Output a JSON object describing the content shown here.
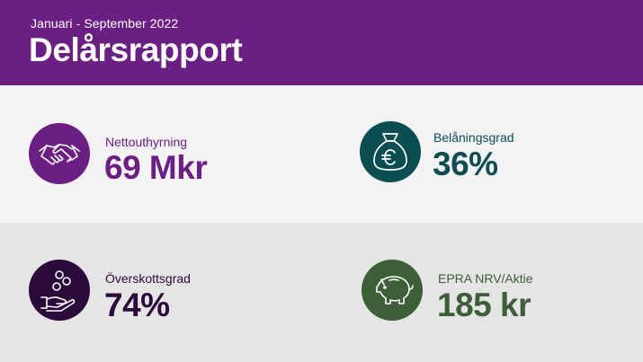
{
  "header": {
    "period": "Januari - September 2022",
    "title": "Delårsrapport",
    "color": "#6c1f82"
  },
  "kpis": [
    {
      "label": "Nettouthyrning",
      "value": "69 Mkr",
      "icon": "handshake-icon",
      "color": "#6c1f82"
    },
    {
      "label": "Belåningsgrad",
      "value": "36%",
      "icon": "money-bag-euro-icon",
      "color": "#0b4d52"
    },
    {
      "label": "Överskottsgrad",
      "value": "74%",
      "icon": "hand-coins-icon",
      "color": "#2a0a3a"
    },
    {
      "label": "EPRA NRV/Aktie",
      "value": "185 kr",
      "icon": "piggy-bank-icon",
      "color": "#3d5e38"
    }
  ]
}
